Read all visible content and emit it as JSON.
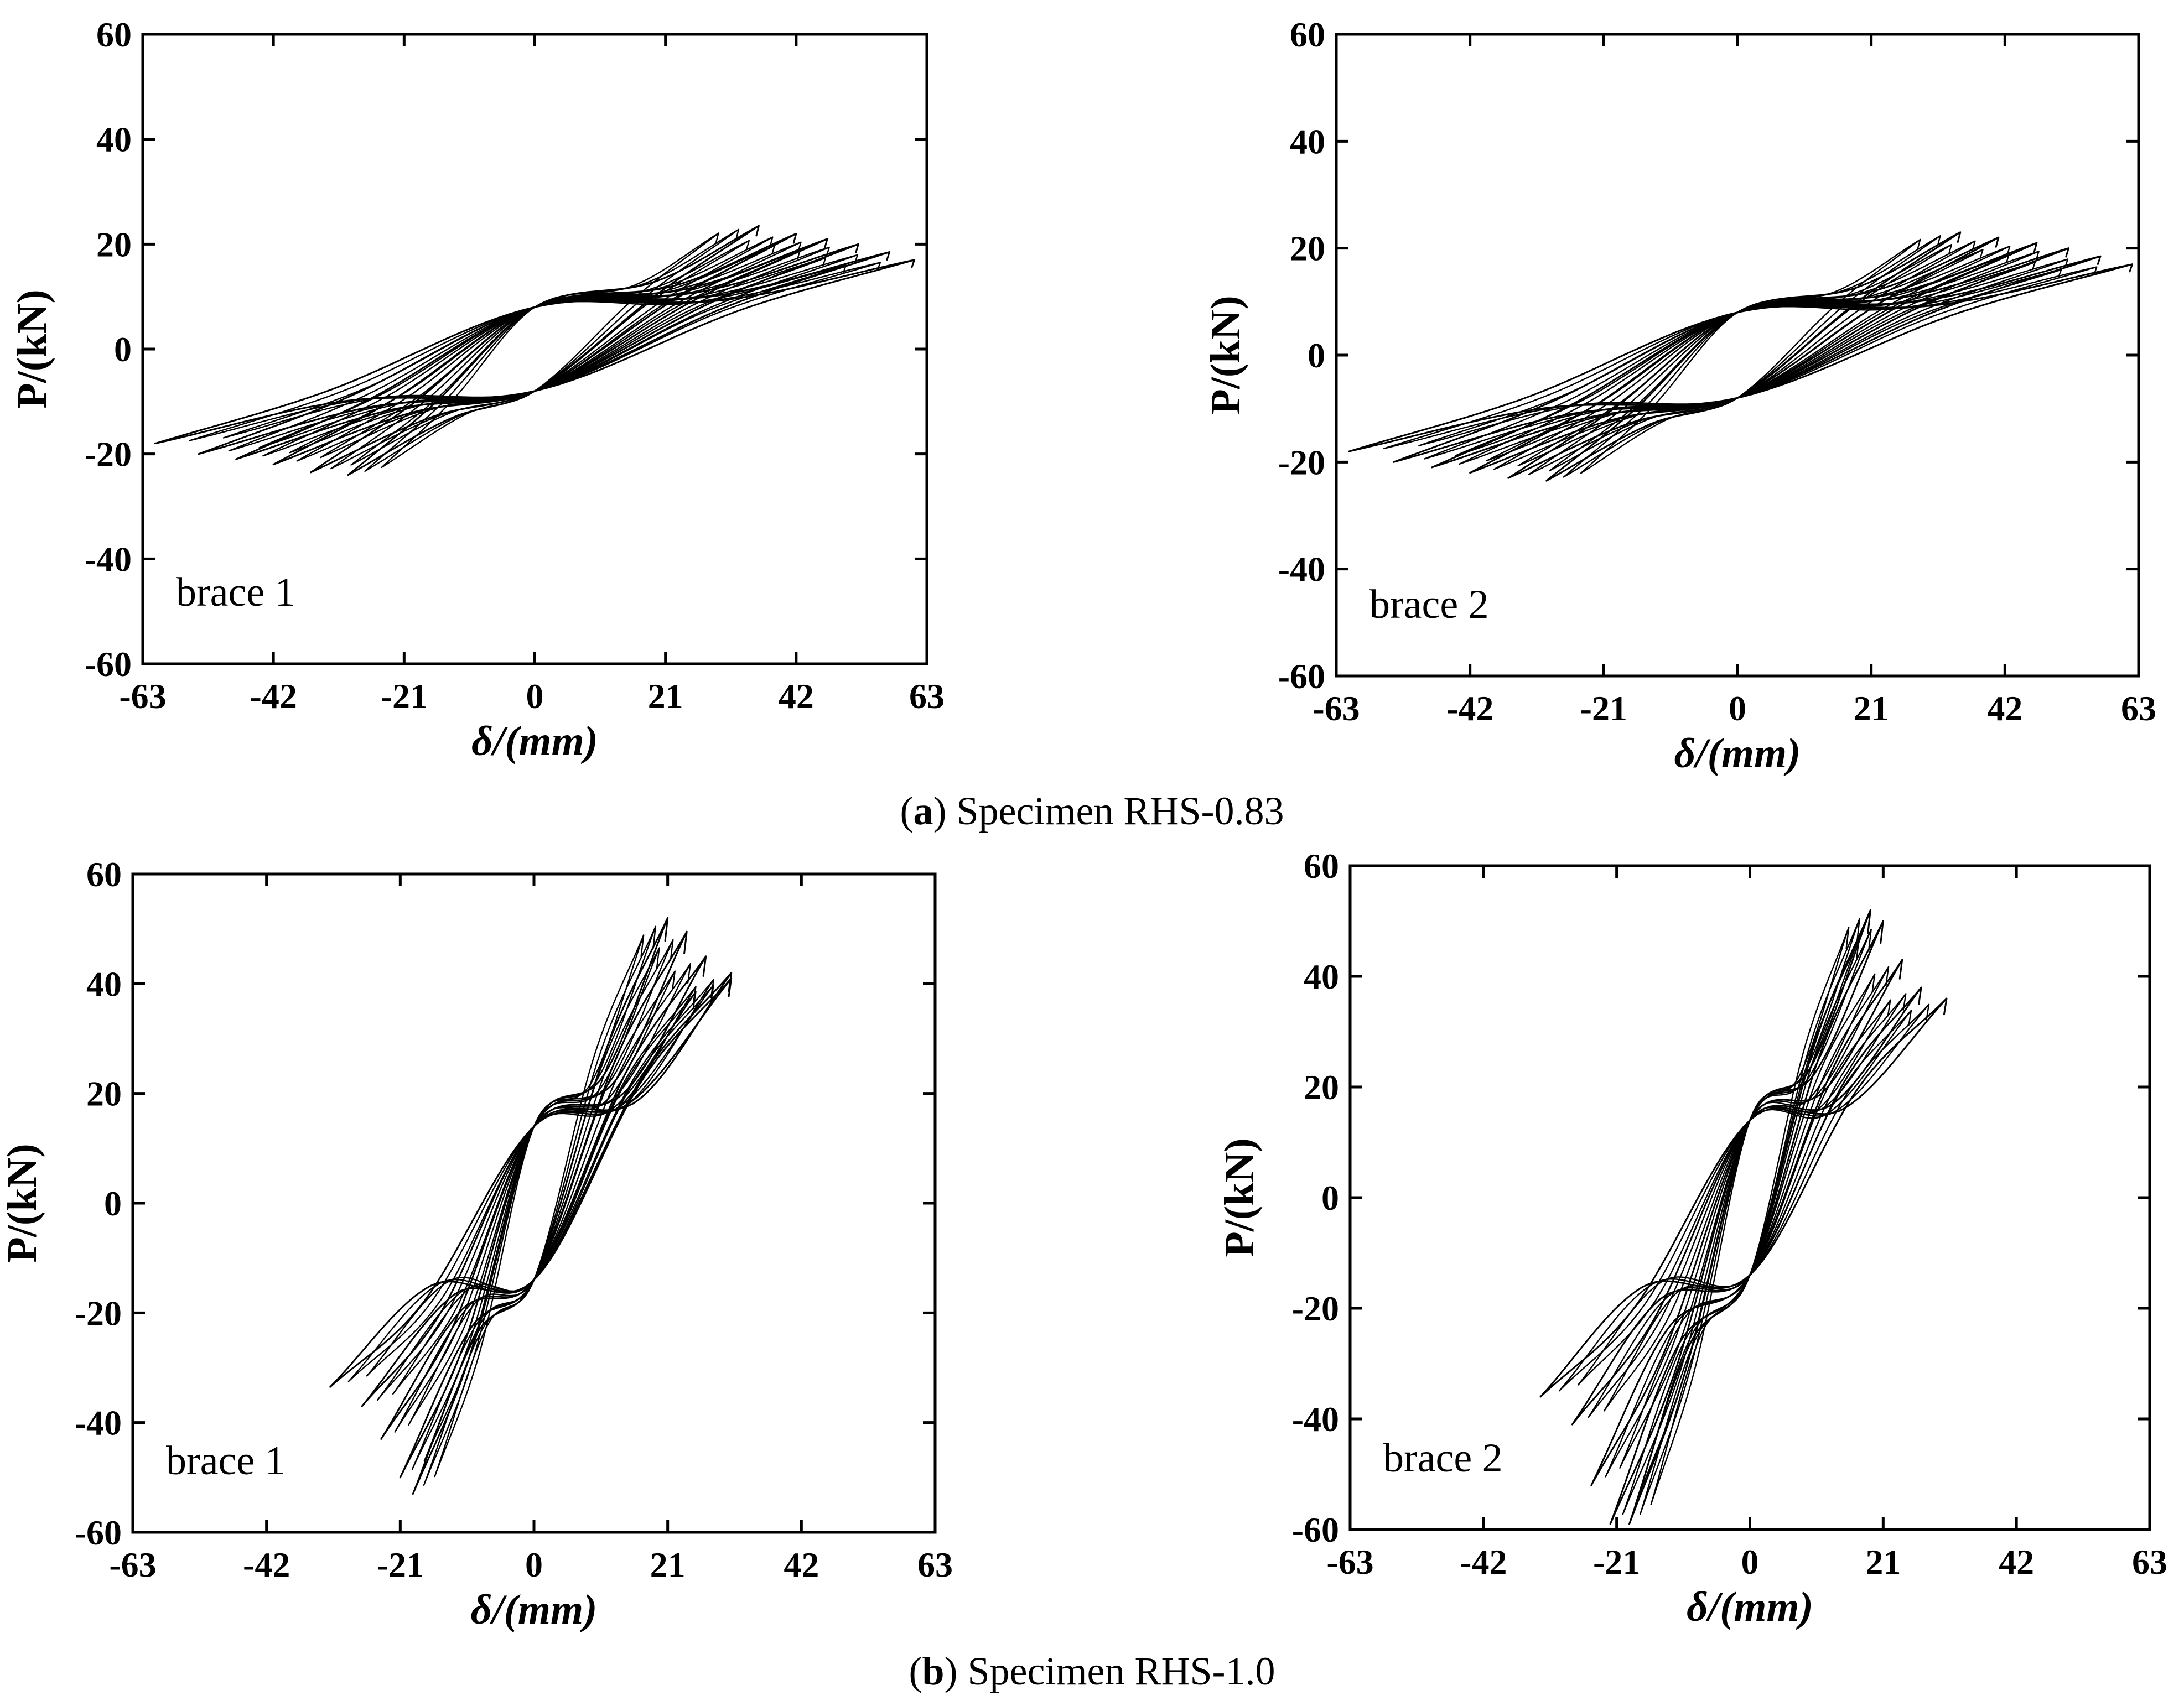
{
  "figure": {
    "captions": [
      {
        "label": "a",
        "text": "Specimen RHS-0.83"
      },
      {
        "label": "b",
        "text": "Specimen RHS-1.0"
      }
    ]
  },
  "chart_data": [
    {
      "type": "line",
      "title": "",
      "annotation": "brace 1",
      "xlabel": "δ/(mm)",
      "ylabel": "P/(kN)",
      "xlim": [
        -63,
        63
      ],
      "ylim": [
        -60,
        60
      ],
      "xticks": [
        -63,
        -42,
        -21,
        0,
        21,
        42,
        63
      ],
      "yticks": [
        -60,
        -40,
        -20,
        0,
        20,
        40,
        60
      ],
      "xtick_labels": [
        "-63",
        "-42",
        "-21",
        "0",
        "21",
        "42",
        "63"
      ],
      "ytick_labels": [
        "-60",
        "-40",
        "-20",
        "0",
        "20",
        "40",
        "60"
      ],
      "series_kind": "hysteresis",
      "loops": [
        {
          "x_max": 36,
          "p_max": 23.5,
          "x_min": -30,
          "p_min": -24
        },
        {
          "x_max": 42,
          "p_max": 22,
          "x_min": -36,
          "p_min": -23.5
        },
        {
          "x_max": 47,
          "p_max": 21,
          "x_min": -42,
          "p_min": -22
        },
        {
          "x_max": 52,
          "p_max": 20,
          "x_min": -48,
          "p_min": -21
        },
        {
          "x_max": 57,
          "p_max": 18.5,
          "x_min": -54,
          "p_min": -20
        },
        {
          "x_max": 61,
          "p_max": 17,
          "x_min": -61,
          "p_min": -18
        }
      ],
      "loop_envelope": {
        "peak_x": 34,
        "peak_p": 23.5,
        "valley_x": -30,
        "valley_p": -24
      }
    },
    {
      "type": "line",
      "title": "",
      "annotation": "brace 2",
      "xlabel": "δ/(mm)",
      "ylabel": "P/(kN)",
      "xlim": [
        -63,
        63
      ],
      "ylim": [
        -60,
        60
      ],
      "xticks": [
        -63,
        -42,
        -21,
        0,
        21,
        42,
        63
      ],
      "yticks": [
        -60,
        -40,
        -20,
        0,
        20,
        40,
        60
      ],
      "xtick_labels": [
        "-63",
        "-42",
        "-21",
        "0",
        "21",
        "42",
        "63"
      ],
      "ytick_labels": [
        "-60",
        "-40",
        "-20",
        "0",
        "20",
        "40",
        "60"
      ],
      "series_kind": "hysteresis",
      "loops": [
        {
          "x_max": 35,
          "p_max": 23,
          "x_min": -30,
          "p_min": -23.5
        },
        {
          "x_max": 41,
          "p_max": 22,
          "x_min": -36,
          "p_min": -23
        },
        {
          "x_max": 47,
          "p_max": 21,
          "x_min": -42,
          "p_min": -22
        },
        {
          "x_max": 52,
          "p_max": 20,
          "x_min": -48,
          "p_min": -21
        },
        {
          "x_max": 57,
          "p_max": 18.5,
          "x_min": -54,
          "p_min": -20
        },
        {
          "x_max": 62,
          "p_max": 17,
          "x_min": -61,
          "p_min": -18
        }
      ],
      "loop_envelope": {
        "peak_x": 34,
        "peak_p": 23,
        "valley_x": -30,
        "valley_p": -23.5
      }
    },
    {
      "type": "line",
      "title": "",
      "annotation": "brace 1",
      "xlabel": "δ/(mm)",
      "ylabel": "P/(kN)",
      "xlim": [
        -63,
        63
      ],
      "ylim": [
        -60,
        60
      ],
      "xticks": [
        -63,
        -42,
        -21,
        0,
        21,
        42,
        63
      ],
      "yticks": [
        -60,
        -40,
        -20,
        0,
        20,
        40,
        60
      ],
      "xtick_labels": [
        "-63",
        "-42",
        "-21",
        "0",
        "21",
        "42",
        "63"
      ],
      "ytick_labels": [
        "-60",
        "-40",
        "-20",
        "0",
        "20",
        "40",
        "60"
      ],
      "series_kind": "hysteresis",
      "loops": [
        {
          "x_max": 21,
          "p_max": 52,
          "x_min": -19,
          "p_min": -53
        },
        {
          "x_max": 24,
          "p_max": 49.5,
          "x_min": -21,
          "p_min": -50
        },
        {
          "x_max": 27,
          "p_max": 45,
          "x_min": -24,
          "p_min": -43
        },
        {
          "x_max": 31,
          "p_max": 42,
          "x_min": -27,
          "p_min": -37
        },
        {
          "x_max": 31,
          "p_max": 41,
          "x_min": -32,
          "p_min": -33.5
        }
      ],
      "loop_envelope": {
        "peak_x": 21,
        "peak_p": 52,
        "valley_x": -19,
        "valley_p": -53
      }
    },
    {
      "type": "line",
      "title": "",
      "annotation": "brace 2",
      "xlabel": "δ/(mm)",
      "ylabel": "P/(kN)",
      "xlim": [
        -63,
        63
      ],
      "ylim": [
        -60,
        60
      ],
      "xticks": [
        -63,
        -42,
        -21,
        0,
        21,
        42,
        63
      ],
      "yticks": [
        -60,
        -40,
        -20,
        0,
        20,
        40,
        60
      ],
      "xtick_labels": [
        "-63",
        "-42",
        "-21",
        "0",
        "21",
        "42",
        "63"
      ],
      "ytick_labels": [
        "-60",
        "-40",
        "-20",
        "0",
        "20",
        "40",
        "60"
      ],
      "series_kind": "hysteresis",
      "loops": [
        {
          "x_max": 19,
          "p_max": 52,
          "x_min": -19,
          "p_min": -59
        },
        {
          "x_max": 21,
          "p_max": 50,
          "x_min": -22,
          "p_min": -59
        },
        {
          "x_max": 24,
          "p_max": 43,
          "x_min": -25,
          "p_min": -52
        },
        {
          "x_max": 27,
          "p_max": 38,
          "x_min": -28,
          "p_min": -41
        },
        {
          "x_max": 31,
          "p_max": 36,
          "x_min": -33,
          "p_min": -36
        }
      ],
      "loop_envelope": {
        "peak_x": 19,
        "peak_p": 52,
        "valley_x": -22,
        "valley_p": -59
      }
    }
  ]
}
